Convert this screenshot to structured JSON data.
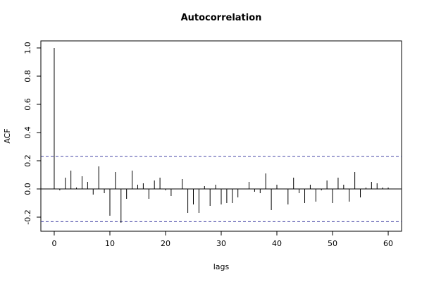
{
  "chart_data": {
    "type": "bar",
    "title": "Autocorrelation",
    "xlabel": "lags",
    "ylabel": "ACF",
    "xlim": [
      -2.4,
      62.4
    ],
    "ylim": [
      -0.3,
      1.05
    ],
    "xticks": [
      0,
      10,
      20,
      30,
      40,
      50,
      60
    ],
    "yticks": [
      -0.2,
      0.0,
      0.2,
      0.4,
      0.6,
      0.8,
      1.0
    ],
    "ytick_labels": [
      "-0.2",
      "0.0",
      "0.2",
      "0.4",
      "0.6",
      "0.8",
      "1.0"
    ],
    "confidence_band": 0.232,
    "confidence_band_style": "dashed",
    "confidence_band_color": "#4a4aa8",
    "grid": false,
    "lags": [
      0,
      1,
      2,
      3,
      4,
      5,
      6,
      7,
      8,
      9,
      10,
      11,
      12,
      13,
      14,
      15,
      16,
      17,
      18,
      19,
      20,
      21,
      22,
      23,
      24,
      25,
      26,
      27,
      28,
      29,
      30,
      31,
      32,
      33,
      34,
      35,
      36,
      37,
      38,
      39,
      40,
      41,
      42,
      43,
      44,
      45,
      46,
      47,
      48,
      49,
      50,
      51,
      52,
      53,
      54,
      55,
      56,
      57,
      58,
      59,
      60
    ],
    "values": [
      1.0,
      -0.01,
      0.08,
      0.13,
      0.01,
      0.09,
      0.05,
      -0.04,
      0.16,
      -0.03,
      -0.19,
      0.12,
      -0.24,
      -0.07,
      0.13,
      0.03,
      0.04,
      -0.07,
      0.06,
      0.08,
      -0.01,
      -0.05,
      0.0,
      0.07,
      -0.17,
      -0.11,
      -0.17,
      0.02,
      -0.12,
      0.03,
      -0.11,
      -0.1,
      -0.1,
      -0.06,
      0.0,
      0.05,
      -0.02,
      -0.03,
      0.11,
      -0.15,
      0.03,
      0.0,
      -0.11,
      0.08,
      -0.03,
      -0.1,
      0.03,
      -0.09,
      -0.01,
      0.06,
      -0.1,
      0.08,
      0.03,
      -0.09,
      0.12,
      -0.06,
      0.01,
      0.05,
      0.04,
      0.01,
      0.01
    ]
  }
}
